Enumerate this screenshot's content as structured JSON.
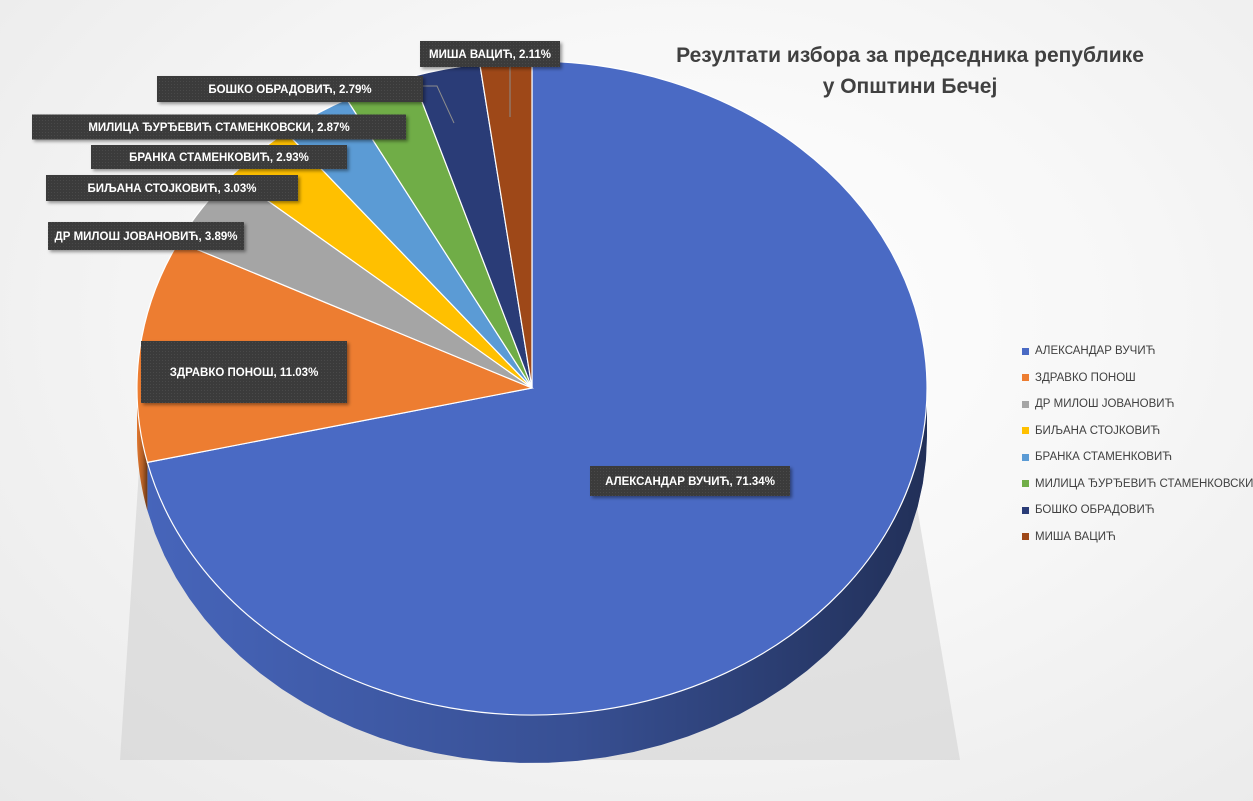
{
  "chart_data": {
    "type": "pie",
    "title": "Резултати избора за председника републике у Општини Бечеј",
    "title_lines": [
      "Резултати избора за председника републике",
      "у Општини Бечеј"
    ],
    "legend_position": "right",
    "slices": [
      {
        "name": "АЛЕКСАНДАР ВУЧИЋ",
        "value": 71.34,
        "label": "АЛЕКСАНДАР ВУЧИЋ, 71.34%",
        "color": "#4a6ac4"
      },
      {
        "name": "ЗДРАВКО ПОНОШ",
        "value": 11.03,
        "label": "ЗДРАВКО ПОНОШ, 11.03%",
        "color": "#ed7d31"
      },
      {
        "name": "ДР МИЛОШ ЈОВАНОВИЋ",
        "value": 3.89,
        "label": "ДР МИЛОШ ЈОВАНОВИЋ, 3.89%",
        "color": "#a5a5a5"
      },
      {
        "name": "БИЉАНА СТОЈКОВИЋ",
        "value": 3.03,
        "label": "БИЉАНА СТОЈКОВИЋ, 3.03%",
        "color": "#ffc000"
      },
      {
        "name": "БРАНКА СТАМЕНКОВИЋ",
        "value": 2.93,
        "label": "БРАНКА СТАМЕНКОВИЋ, 2.93%",
        "color": "#5b9bd5"
      },
      {
        "name": "МИЛИЦА ЂУРЂЕВИЋ СТАМЕНКОВСКИ",
        "value": 2.87,
        "label": "МИЛИЦА ЂУРЂЕВИЋ СТАМЕНКОВСКИ, 2.87%",
        "color": "#70ad47"
      },
      {
        "name": "БОШКО ОБРАДОВИЋ",
        "value": 2.79,
        "label": "БОШКО ОБРАДОВИЋ, 2.79%",
        "color": "#2a3c77"
      },
      {
        "name": "МИША ВАЦИЋ",
        "value": 2.11,
        "label": "МИША ВАЦИЋ, 2.11%",
        "color": "#9e4818"
      }
    ]
  }
}
